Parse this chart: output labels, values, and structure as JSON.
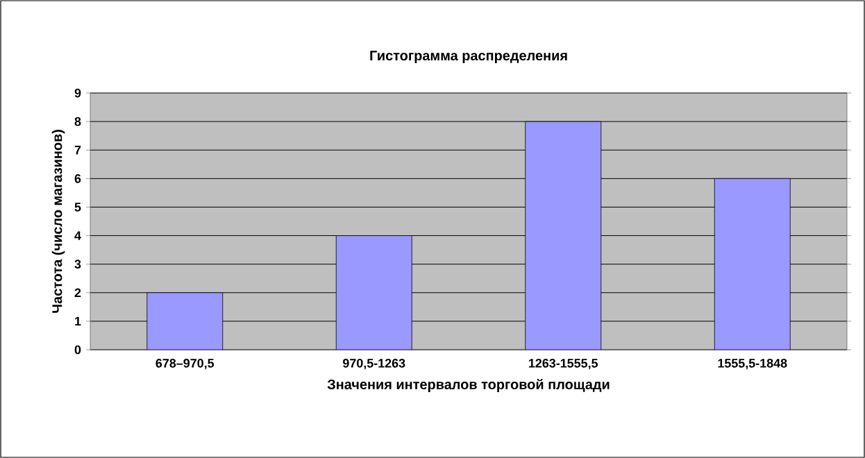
{
  "chart_data": {
    "type": "bar",
    "title": "Гистограмма распределения",
    "xlabel": "Значения интервалов торговой площади",
    "ylabel": "Частота (число магазинов)",
    "categories": [
      "678–970,5",
      "970,5-1263",
      "1263-1555,5",
      "1555,5-1848"
    ],
    "values": [
      2,
      4,
      8,
      6
    ],
    "color": "#9999ff",
    "ylim": [
      0,
      9
    ],
    "yticks": [
      0,
      1,
      2,
      3,
      4,
      5,
      6,
      7,
      8,
      9
    ],
    "grid": "y"
  }
}
